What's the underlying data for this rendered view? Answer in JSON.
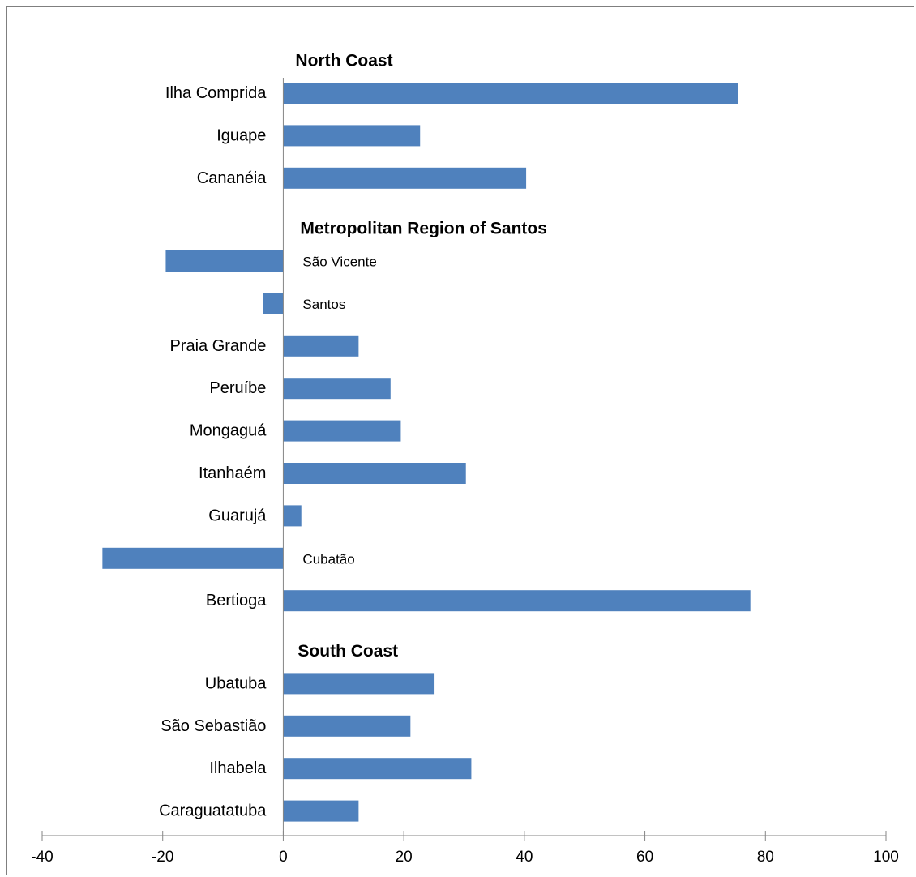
{
  "chart_data": {
    "type": "bar",
    "orientation": "horizontal",
    "title": "",
    "xlabel": "",
    "ylabel": "",
    "xlim": [
      -40,
      100
    ],
    "x_ticks": [
      -40,
      -20,
      0,
      20,
      40,
      60,
      80,
      100
    ],
    "grid": false,
    "legend": "none",
    "bar_color": "#4f81bd",
    "groups": [
      {
        "title": "North Coast",
        "bars": [
          {
            "label": "Ilha Comprida",
            "value": 75.5
          },
          {
            "label": "Iguape",
            "value": 22.7
          },
          {
            "label": "Cananéia",
            "value": 40.3
          }
        ]
      },
      {
        "title": "Metropolitan Region of Santos",
        "bars": [
          {
            "label": "São Vicente",
            "value": -19.5
          },
          {
            "label": "Santos",
            "value": -3.4
          },
          {
            "label": "Praia Grande",
            "value": 12.5
          },
          {
            "label": "Peruíbe",
            "value": 17.8
          },
          {
            "label": "Mongaguá",
            "value": 19.5
          },
          {
            "label": "Itanhaém",
            "value": 30.3
          },
          {
            "label": "Guarujá",
            "value": 3.0
          },
          {
            "label": "Cubatão",
            "value": -30.0
          },
          {
            "label": "Bertioga",
            "value": 77.5
          }
        ]
      },
      {
        "title": "South Coast",
        "bars": [
          {
            "label": "Ubatuba",
            "value": 25.1
          },
          {
            "label": "São Sebastião",
            "value": 21.1
          },
          {
            "label": "Ilhabela",
            "value": 31.2
          },
          {
            "label": "Caraguatatuba",
            "value": 12.5
          }
        ]
      }
    ]
  }
}
